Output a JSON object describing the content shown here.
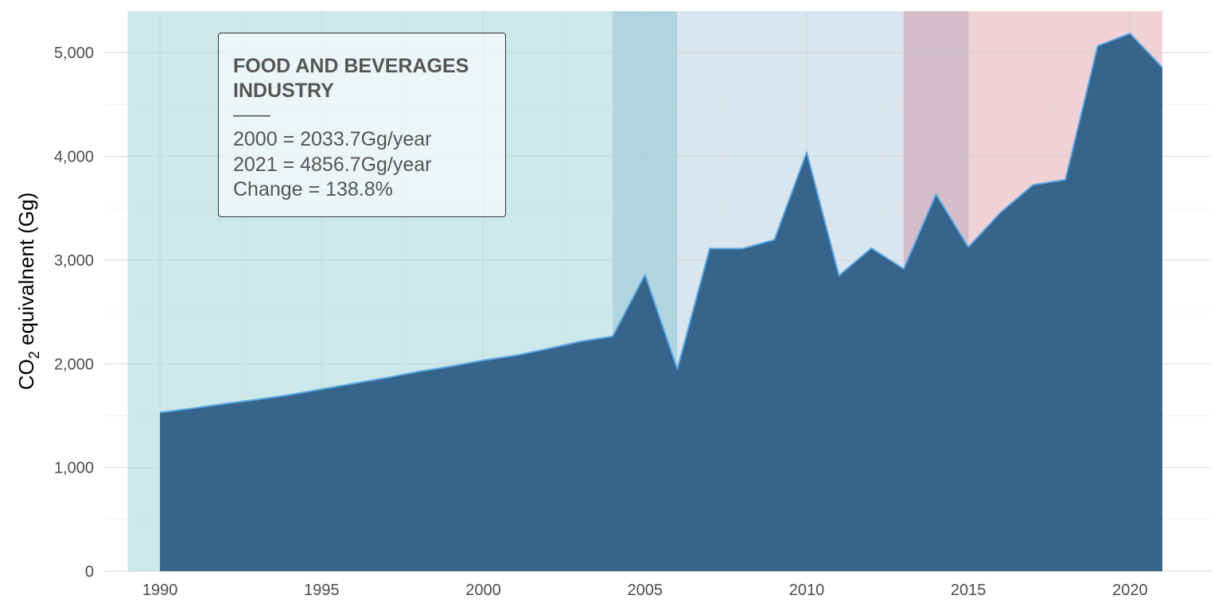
{
  "chart_data": {
    "type": "area",
    "title": "",
    "xlabel": "",
    "ylabel_prefix": "CO",
    "ylabel_subscript": "2",
    "ylabel_suffix": " equivalnent (Gg)",
    "x": [
      1990,
      1991,
      1992,
      1993,
      1994,
      1995,
      1996,
      1997,
      1998,
      1999,
      2000,
      2001,
      2002,
      2003,
      2004,
      2005,
      2006,
      2007,
      2008,
      2009,
      2010,
      2011,
      2012,
      2013,
      2014,
      2015,
      2016,
      2017,
      2018,
      2019,
      2020,
      2021
    ],
    "y": [
      1530,
      1570,
      1615,
      1655,
      1700,
      1755,
      1810,
      1865,
      1925,
      1975,
      2034,
      2080,
      2145,
      2215,
      2265,
      2860,
      1950,
      3110,
      3110,
      3195,
      4040,
      2850,
      3115,
      2915,
      3635,
      3125,
      3460,
      3725,
      3775,
      5065,
      5185,
      4857
    ],
    "xlim": [
      1988.3,
      2022.5
    ],
    "ylim": [
      0,
      5400
    ],
    "x_ticks": [
      1990,
      1995,
      2000,
      2005,
      2010,
      2015,
      2020
    ],
    "x_tick_labels": [
      "1990",
      "1995",
      "2000",
      "2005",
      "2010",
      "2015",
      "2020"
    ],
    "y_ticks": [
      0,
      1000,
      2000,
      3000,
      4000,
      5000
    ],
    "y_tick_labels": [
      "0",
      "1,000",
      "2,000",
      "3,000",
      "4,000",
      "5,000"
    ],
    "grid": true,
    "background_periods": [
      {
        "from": 1989,
        "to": 2006,
        "color": "#cde8ea"
      },
      {
        "from": 2004,
        "to": 2006,
        "color": "#b1d5de"
      },
      {
        "from": 2006,
        "to": 2013,
        "color": "#dae6ef"
      },
      {
        "from": 2013,
        "to": 2021,
        "color": "#f0d1d5"
      },
      {
        "from": 2013,
        "to": 2015,
        "color": "#d3bdc8"
      }
    ],
    "area_color": "#36648b",
    "line_color": "#5aa8e6",
    "annotation": {
      "title_lines": [
        "FOOD AND BEVERAGES",
        "INDUSTRY"
      ],
      "rule": "——",
      "lines": [
        "2000 = 2033.7Gg/year",
        "2021 = 4856.7Gg/year",
        "Change = 138.8%"
      ]
    }
  }
}
